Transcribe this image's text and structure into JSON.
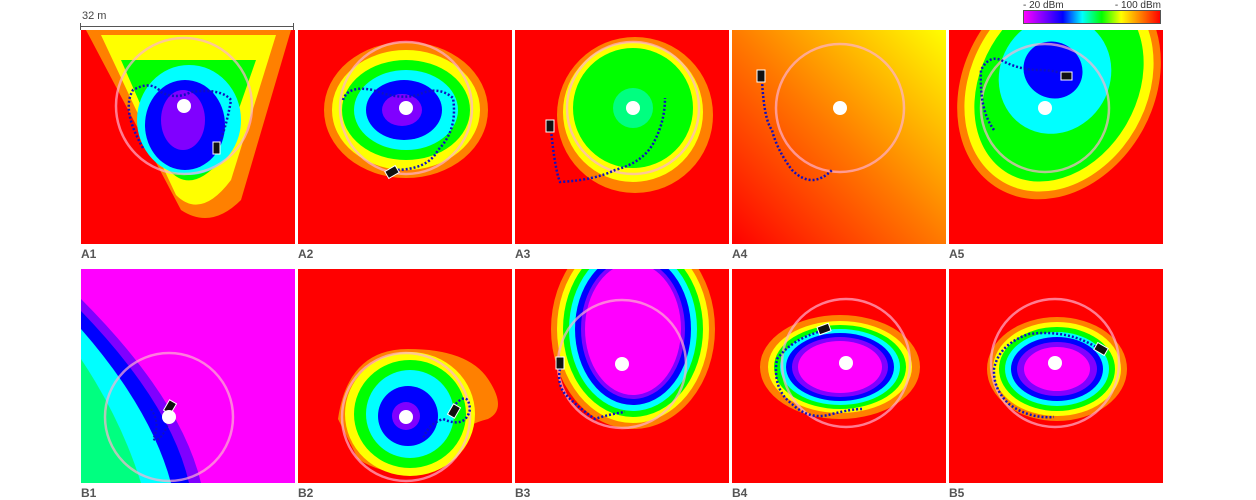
{
  "scale_bar": {
    "label": "32 m"
  },
  "colorbar": {
    "min_label": "- 20 dBm",
    "max_label": "- 100 dBm",
    "colors": [
      "#ff00ff",
      "#8000ff",
      "#0000ff",
      "#00ffff",
      "#00ff00",
      "#ffff00",
      "#ff8000",
      "#ff0000"
    ]
  },
  "panels": [
    {
      "label": "A1",
      "background": "#ff0000"
    },
    {
      "label": "A2",
      "background": "#ff0000"
    },
    {
      "label": "A3",
      "background": "#ff0000"
    },
    {
      "label": "A4",
      "background": "#ff7a00"
    },
    {
      "label": "A5",
      "background": "#ff0000"
    },
    {
      "label": "B1",
      "background": "#ff00ff"
    },
    {
      "label": "B2",
      "background": "#ff0000"
    },
    {
      "label": "B3",
      "background": "#ff0000"
    },
    {
      "label": "B4",
      "background": "#ff0000"
    },
    {
      "label": "B5",
      "background": "#ff0000"
    }
  ]
}
